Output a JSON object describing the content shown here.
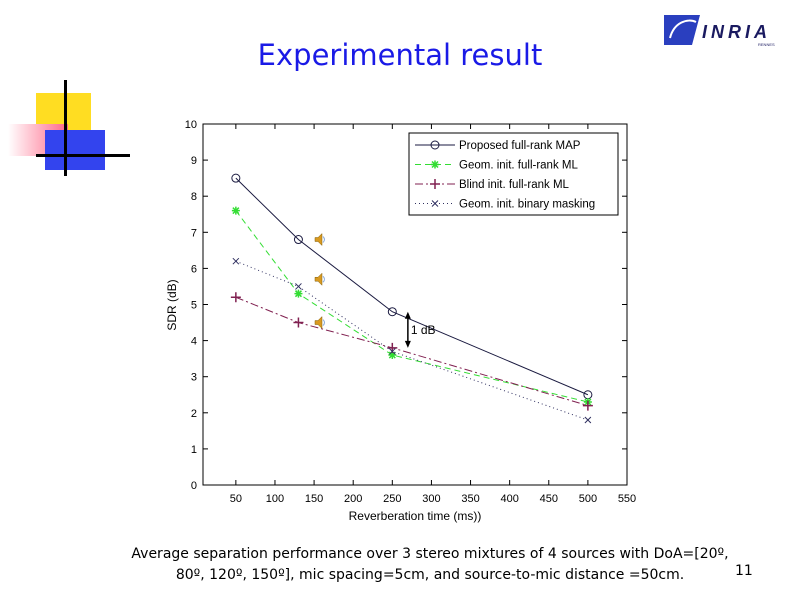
{
  "slide": {
    "title": "Experimental result",
    "page_number": "11",
    "caption_line1": "Average separation performance over 3 stereo mixtures of 4 sources with DoA=[20º,",
    "caption_line2": "80º, 120º, 150º], mic spacing=5cm, and source-to-mic distance =50cm.",
    "logo_text": "INRIA",
    "logo_sub": "RENNES"
  },
  "chart_data": {
    "type": "line",
    "xlabel": "Reverberation time (ms))",
    "ylabel": "SDR (dB)",
    "xlim": [
      8,
      550
    ],
    "ylim": [
      0,
      10
    ],
    "xticks": [
      50,
      100,
      150,
      200,
      250,
      300,
      350,
      400,
      450,
      500,
      550
    ],
    "yticks": [
      0,
      1,
      2,
      3,
      4,
      5,
      6,
      7,
      8,
      9,
      10
    ],
    "x": [
      50,
      130,
      250,
      500
    ],
    "legend_position": "top-right",
    "series": [
      {
        "name": "Proposed full-rank MAP",
        "values": [
          8.5,
          6.8,
          4.8,
          2.5
        ],
        "color": "#1a1a40",
        "marker": "o",
        "dash": ""
      },
      {
        "name": "Geom. init. full-rank ML",
        "values": [
          7.6,
          5.3,
          3.6,
          2.3
        ],
        "color": "#33dd33",
        "marker": "*",
        "dash": "6,4"
      },
      {
        "name": "Blind init. full-rank ML",
        "values": [
          5.2,
          4.5,
          3.8,
          2.2
        ],
        "color": "#802050",
        "marker": "+",
        "dash": "8,3,2,3"
      },
      {
        "name": "Geom. init. binary masking",
        "values": [
          6.2,
          5.5,
          3.7,
          1.8
        ],
        "color": "#303060",
        "marker": "x",
        "dash": "1,3"
      }
    ],
    "annotation": {
      "text": "1 dB",
      "x": 275,
      "y_from": 4.8,
      "y_to": 3.8
    },
    "speaker_icons": [
      {
        "x": 155,
        "y": 6.8
      },
      {
        "x": 155,
        "y": 5.7
      },
      {
        "x": 155,
        "y": 4.5
      }
    ]
  }
}
